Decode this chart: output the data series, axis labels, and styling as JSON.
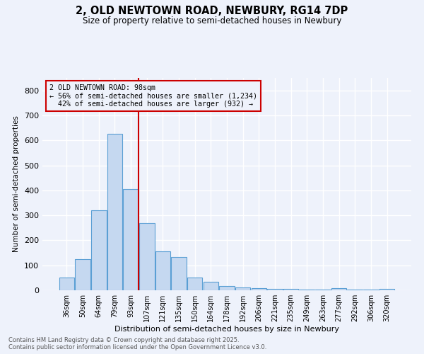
{
  "title_line1": "2, OLD NEWTOWN ROAD, NEWBURY, RG14 7DP",
  "title_line2": "Size of property relative to semi-detached houses in Newbury",
  "xlabel": "Distribution of semi-detached houses by size in Newbury",
  "ylabel": "Number of semi-detached properties",
  "footer_line1": "Contains HM Land Registry data © Crown copyright and database right 2025.",
  "footer_line2": "Contains public sector information licensed under the Open Government Licence v3.0.",
  "categories": [
    "36sqm",
    "50sqm",
    "64sqm",
    "79sqm",
    "93sqm",
    "107sqm",
    "121sqm",
    "135sqm",
    "150sqm",
    "164sqm",
    "178sqm",
    "192sqm",
    "206sqm",
    "221sqm",
    "235sqm",
    "249sqm",
    "263sqm",
    "277sqm",
    "292sqm",
    "306sqm",
    "320sqm"
  ],
  "values": [
    50,
    125,
    320,
    625,
    405,
    270,
    155,
    132,
    52,
    35,
    18,
    12,
    8,
    6,
    5,
    4,
    4,
    8,
    3,
    2,
    7
  ],
  "bar_color": "#c5d8f0",
  "bar_edge_color": "#5a9fd4",
  "vline_x_index": 4.5,
  "vline_color": "#cc0000",
  "property_label": "2 OLD NEWTOWN ROAD: 98sqm",
  "pct_smaller": 56,
  "pct_larger": 42,
  "count_smaller": "1,234",
  "count_larger": "932",
  "annotation_box_color": "#cc0000",
  "bg_color": "#eef2fb",
  "grid_color": "#ffffff",
  "ylim": [
    0,
    850
  ],
  "yticks": [
    0,
    100,
    200,
    300,
    400,
    500,
    600,
    700,
    800
  ]
}
